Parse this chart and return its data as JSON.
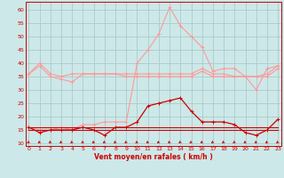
{
  "x": [
    0,
    1,
    2,
    3,
    4,
    5,
    6,
    7,
    8,
    9,
    10,
    11,
    12,
    13,
    14,
    15,
    16,
    17,
    18,
    19,
    20,
    21,
    22,
    23
  ],
  "wind_avg": [
    16,
    14,
    15,
    15,
    15,
    16,
    15,
    13,
    16,
    16,
    18,
    24,
    25,
    26,
    27,
    22,
    18,
    18,
    18,
    17,
    14,
    13,
    15,
    19
  ],
  "wind_gust": [
    16,
    15,
    15,
    16,
    15,
    17,
    17,
    18,
    18,
    18,
    40,
    45,
    51,
    61,
    54,
    50,
    46,
    37,
    38,
    38,
    35,
    30,
    38,
    39
  ],
  "upper_band": [
    36,
    40,
    36,
    35,
    36,
    36,
    36,
    36,
    36,
    36,
    36,
    36,
    36,
    36,
    36,
    36,
    38,
    36,
    36,
    35,
    35,
    35,
    36,
    39
  ],
  "lower_band": [
    36,
    39,
    35,
    34,
    33,
    36,
    36,
    36,
    36,
    35,
    35,
    35,
    35,
    35,
    35,
    35,
    37,
    35,
    35,
    35,
    35,
    35,
    35,
    38
  ],
  "dark_flat1": [
    16,
    16,
    16,
    16,
    16,
    16,
    16,
    16,
    16,
    16,
    16,
    16,
    16,
    16,
    16,
    16,
    16,
    16,
    16,
    16,
    16,
    16,
    16,
    16
  ],
  "dark_flat2": [
    15,
    15,
    15,
    15,
    15,
    15,
    15,
    15,
    15,
    15,
    15,
    15,
    15,
    15,
    15,
    15,
    15,
    15,
    15,
    15,
    15,
    15,
    15,
    15
  ],
  "bg_color": "#cde8e8",
  "grid_color": "#aacccc",
  "dark_red": "#cc0000",
  "light_pink": "#ff9999",
  "xlabel": "Vent moyen/en rafales ( km/h )",
  "yticks": [
    10,
    15,
    20,
    25,
    30,
    35,
    40,
    45,
    50,
    55,
    60
  ],
  "xticks": [
    0,
    1,
    2,
    3,
    4,
    5,
    6,
    7,
    8,
    9,
    10,
    11,
    12,
    13,
    14,
    15,
    16,
    17,
    18,
    19,
    20,
    21,
    22,
    23
  ],
  "xlim": [
    -0.3,
    23.3
  ],
  "ylim": [
    9,
    63
  ]
}
